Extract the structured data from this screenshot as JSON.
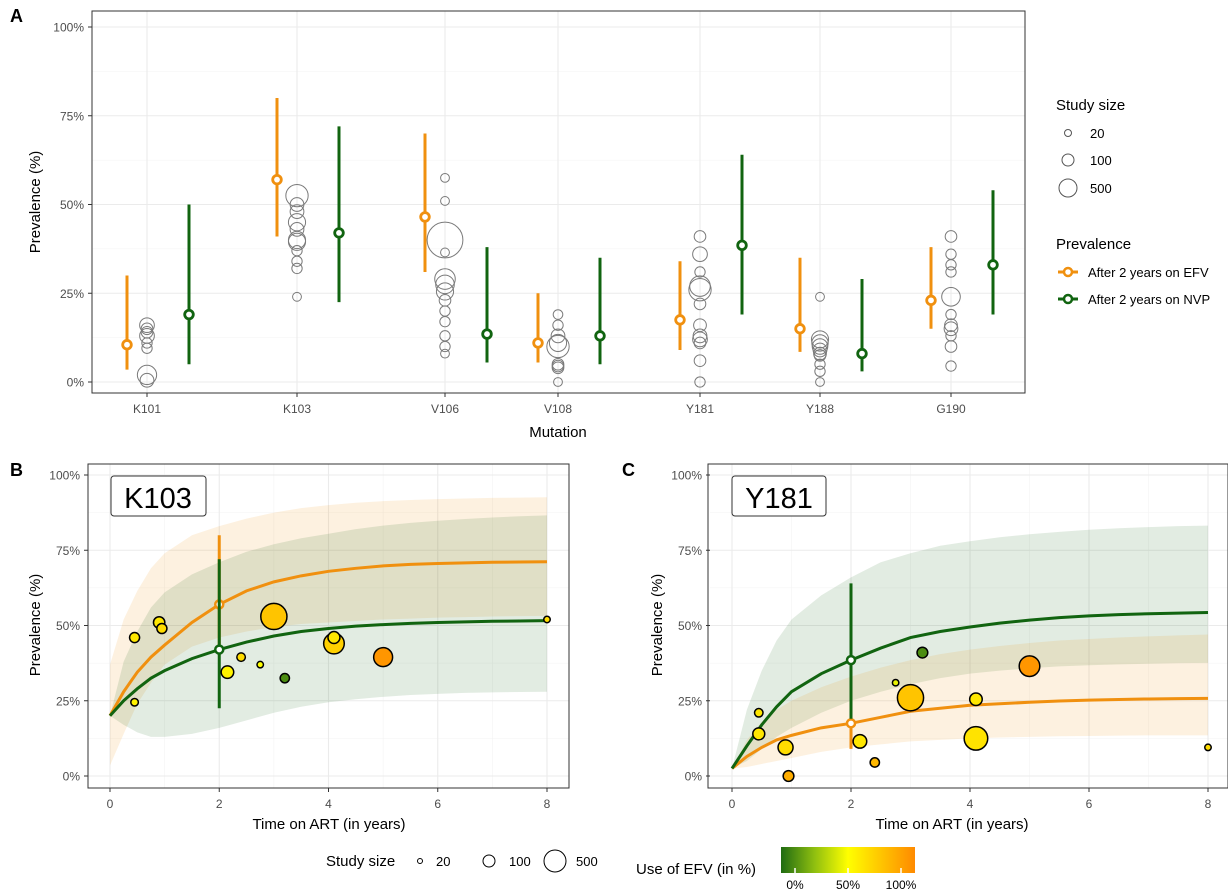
{
  "panel_labels": {
    "a": "A",
    "b": "B",
    "c": "C"
  },
  "legend": {
    "size_title": "Study size",
    "size_items": [
      "20",
      "100",
      "500"
    ],
    "prev_title": "Prevalence",
    "prev_items": [
      "After 2 years on EFV",
      "After 2 years on NVP"
    ],
    "efv_title": "Use of EFV (in %)",
    "efv_ticks": [
      "0%",
      "50%",
      "100%"
    ]
  },
  "colors": {
    "efv": "#f0900f",
    "nvp": "#116410",
    "grid": "#ebebeb",
    "gradient": [
      "#1f6b12",
      "#8fbf10",
      "#ffff00",
      "#ffc400",
      "#ff8a00"
    ]
  },
  "chart_data": [
    {
      "type": "scatter",
      "panel": "A",
      "xlabel": "Mutation",
      "ylabel": "Prevalence (%)",
      "ylim": [
        0,
        100
      ],
      "yticks": [
        "0%",
        "25%",
        "50%",
        "75%",
        "100%"
      ],
      "categories": [
        "K101",
        "K103",
        "V106",
        "V108",
        "Y181",
        "Y188",
        "G190"
      ],
      "series": [
        {
          "name": "After 2 years on EFV",
          "point": [
            10.5,
            57,
            46.5,
            11,
            17.5,
            15,
            23
          ],
          "lower": [
            3.5,
            41,
            31,
            5.5,
            9,
            8.5,
            15
          ],
          "upper": [
            30,
            80,
            70,
            25,
            34,
            35,
            38
          ]
        },
        {
          "name": "After 2 years on NVP",
          "point": [
            19,
            42,
            13.5,
            13,
            38.5,
            8,
            33
          ],
          "lower": [
            5,
            22.5,
            5.5,
            5,
            19,
            3,
            19
          ],
          "upper": [
            50,
            72,
            38,
            35,
            64,
            29,
            54
          ]
        }
      ],
      "studies": [
        [
          [
            16,
            15,
            14,
            13,
            11,
            9.5,
            2,
            0.5
          ],
          [
            70,
            40,
            40,
            70,
            30,
            30,
            130,
            60
          ]
        ],
        [
          [
            52.5,
            50,
            48,
            45,
            43,
            40,
            39.5,
            37,
            34,
            32,
            24
          ],
          [
            180,
            60,
            60,
            100,
            60,
            100,
            100,
            30,
            30,
            30,
            20
          ]
        ],
        [
          [
            57.5,
            51,
            40,
            36.5,
            29,
            27.5,
            25.5,
            23,
            20,
            17,
            13,
            10,
            8
          ],
          [
            20,
            20,
            500,
            20,
            150,
            120,
            100,
            40,
            30,
            30,
            30,
            30,
            20
          ]
        ],
        [
          [
            19,
            16,
            13,
            11,
            10,
            5,
            4.5,
            4,
            0
          ],
          [
            25,
            30,
            60,
            100,
            180,
            40,
            40,
            40,
            20
          ]
        ],
        [
          [
            41,
            36,
            31,
            27,
            26,
            22,
            16,
            13,
            12,
            11,
            6,
            0
          ],
          [
            40,
            70,
            30,
            150,
            180,
            40,
            50,
            60,
            70,
            40,
            40,
            30
          ]
        ],
        [
          [
            24,
            12,
            11,
            10,
            9,
            8,
            7.5,
            5,
            3,
            0
          ],
          [
            20,
            100,
            90,
            80,
            60,
            50,
            40,
            30,
            30,
            20
          ]
        ],
        [
          [
            41,
            36,
            33,
            31,
            24,
            19,
            16,
            15,
            13,
            10,
            4.5
          ],
          [
            40,
            30,
            30,
            30,
            120,
            30,
            50,
            60,
            30,
            40,
            30
          ]
        ]
      ]
    },
    {
      "type": "line",
      "panel": "B",
      "annotation": "K103",
      "xlabel": "Time on ART (in years)",
      "ylabel": "Prevalence (%)",
      "xlim": [
        0,
        8
      ],
      "ylim": [
        0,
        100
      ],
      "xticks": [
        "0",
        "2",
        "4",
        "6",
        "8"
      ],
      "yticks": [
        "0%",
        "25%",
        "50%",
        "75%",
        "100%"
      ],
      "series": [
        {
          "name": "EFV",
          "x": [
            0,
            0.25,
            0.5,
            0.75,
            1,
            1.5,
            2,
            2.5,
            3,
            3.5,
            4,
            4.5,
            5,
            5.5,
            6,
            6.5,
            7,
            7.5,
            8
          ],
          "y": [
            20,
            28,
            34.5,
            39.5,
            43.5,
            51,
            57,
            61.5,
            64.5,
            66.5,
            68,
            69,
            69.8,
            70.3,
            70.6,
            70.8,
            71,
            71.1,
            71.2
          ],
          "lower": [
            3.5,
            14,
            24,
            31,
            37,
            43,
            46,
            48,
            49.5,
            50.5,
            51,
            51.5,
            52,
            52.3,
            52.6,
            52.8,
            53,
            53.1,
            53.2
          ],
          "upper": [
            37,
            52,
            61.5,
            69,
            74,
            80,
            83,
            85.5,
            87.5,
            89,
            90,
            90.8,
            91.3,
            91.7,
            92,
            92.2,
            92.4,
            92.5,
            92.6
          ]
        },
        {
          "name": "NVP",
          "x": [
            0,
            0.25,
            0.5,
            0.75,
            1,
            1.5,
            2,
            2.5,
            3,
            3.5,
            4,
            4.5,
            5,
            5.5,
            6,
            6.5,
            7,
            7.5,
            8
          ],
          "y": [
            20,
            25,
            29,
            32.5,
            35,
            39,
            42,
            44.5,
            46.5,
            48,
            49,
            49.8,
            50.3,
            50.7,
            51,
            51.2,
            51.4,
            51.5,
            51.6
          ],
          "lower": [
            20,
            17,
            14.5,
            13,
            13,
            14,
            16,
            18.5,
            21,
            23,
            24.5,
            25.5,
            26.3,
            26.9,
            27.3,
            27.6,
            27.8,
            27.9,
            28
          ],
          "upper": [
            20,
            38,
            48,
            56,
            61,
            67,
            71,
            74.5,
            77,
            79,
            80.5,
            82,
            83.2,
            84.1,
            84.8,
            85.4,
            85.9,
            86.3,
            86.6
          ]
        }
      ],
      "errorbars": [
        {
          "series": "EFV",
          "x": 2,
          "y": 57,
          "lower": 41,
          "upper": 80
        },
        {
          "series": "NVP",
          "x": 2,
          "y": 42,
          "lower": 22.5,
          "upper": 72
        }
      ],
      "studies": [
        [
          [
            0.45,
            46,
            60,
            60
          ],
          [
            0.45,
            24.5,
            30,
            55
          ],
          [
            0.9,
            51,
            80,
            60
          ],
          [
            0.95,
            49,
            60,
            65
          ],
          [
            2.15,
            34.5,
            100,
            55
          ],
          [
            2.4,
            39.5,
            40,
            65
          ],
          [
            2.75,
            37,
            20,
            50
          ],
          [
            3,
            53,
            500,
            75
          ],
          [
            3.2,
            32.5,
            50,
            10
          ],
          [
            4.1,
            44,
            300,
            70
          ],
          [
            4.1,
            46,
            90,
            60
          ],
          [
            5,
            39.5,
            250,
            95
          ],
          [
            8,
            52,
            20,
            65
          ]
        ]
      ]
    },
    {
      "type": "line",
      "panel": "C",
      "annotation": "Y181",
      "xlabel": "Time on ART (in years)",
      "ylabel": "Prevalence (%)",
      "xlim": [
        0,
        8
      ],
      "ylim": [
        0,
        100
      ],
      "xticks": [
        "0",
        "2",
        "4",
        "6",
        "8"
      ],
      "yticks": [
        "0%",
        "25%",
        "50%",
        "75%",
        "100%"
      ],
      "series": [
        {
          "name": "EFV",
          "x": [
            0,
            0.25,
            0.5,
            0.75,
            1,
            1.5,
            2,
            2.5,
            3,
            3.5,
            4,
            4.5,
            5,
            5.5,
            6,
            6.5,
            7,
            7.5,
            8
          ],
          "y": [
            2.5,
            6.5,
            9.5,
            12,
            13.5,
            16,
            17.5,
            19.5,
            21.5,
            22.5,
            23.5,
            24,
            24.5,
            24.9,
            25.2,
            25.4,
            25.6,
            25.7,
            25.8
          ],
          "lower": [
            2.5,
            3,
            4,
            5,
            6,
            8,
            9.5,
            10.5,
            11.5,
            12,
            12.5,
            12.8,
            13,
            13.2,
            13.3,
            13.4,
            13.5,
            13.5,
            13.5
          ],
          "upper": [
            2.5,
            12,
            18,
            22,
            25,
            29.5,
            33,
            36,
            38.5,
            40.5,
            42,
            43.2,
            44.2,
            45,
            45.5,
            46,
            46.4,
            46.7,
            47
          ]
        },
        {
          "name": "NVP",
          "x": [
            0,
            0.25,
            0.5,
            0.75,
            1,
            1.5,
            2,
            2.5,
            3,
            3.5,
            4,
            4.5,
            5,
            5.5,
            6,
            6.5,
            7,
            7.5,
            8
          ],
          "y": [
            2.5,
            10,
            17,
            23,
            28,
            34,
            38.5,
            42.5,
            46,
            48,
            49.5,
            50.8,
            51.8,
            52.6,
            53.2,
            53.6,
            53.9,
            54.1,
            54.3
          ],
          "lower": [
            2.5,
            5,
            9,
            13,
            16,
            21,
            25,
            28,
            30.5,
            32.5,
            34,
            35,
            35.8,
            36.4,
            36.8,
            37.1,
            37.3,
            37.5,
            37.6
          ],
          "upper": [
            2.5,
            22,
            35,
            45,
            52,
            60,
            66,
            71,
            74,
            76.5,
            78,
            79.3,
            80.3,
            81.1,
            81.8,
            82.3,
            82.7,
            83,
            83.2
          ]
        }
      ],
      "errorbars": [
        {
          "series": "EFV",
          "x": 2,
          "y": 17.5,
          "lower": 9,
          "upper": 34
        },
        {
          "series": "NVP",
          "x": 2,
          "y": 38.5,
          "lower": 19,
          "upper": 64
        }
      ],
      "studies": [
        [
          [
            0.45,
            21,
            40,
            60
          ],
          [
            0.45,
            14,
            90,
            60
          ],
          [
            0.9,
            9.5,
            150,
            65
          ],
          [
            0.95,
            0,
            70,
            85
          ],
          [
            2.15,
            11.5,
            120,
            60
          ],
          [
            2.4,
            4.5,
            50,
            80
          ],
          [
            2.75,
            31,
            20,
            45
          ],
          [
            3,
            26,
            500,
            75
          ],
          [
            3.2,
            41,
            70,
            10
          ],
          [
            4.1,
            25.5,
            100,
            60
          ],
          [
            4.1,
            12.5,
            400,
            62
          ],
          [
            5,
            36.5,
            300,
            95
          ],
          [
            8,
            9.5,
            20,
            65
          ]
        ]
      ]
    }
  ]
}
